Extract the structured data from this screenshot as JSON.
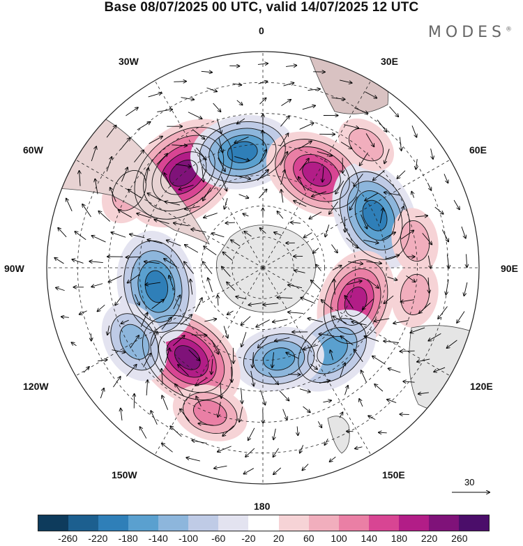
{
  "title": "Base 08/07/2025 00 UTC, valid 14/07/2025 12 UTC",
  "brand": "MODES",
  "brand_mark": "®",
  "longitude_labels": {
    "lon_0": "0",
    "lon_30e": "30E",
    "lon_60e": "60E",
    "lon_90e": "90E",
    "lon_120e": "120E",
    "lon_150e": "150E",
    "lon_180": "180",
    "lon_150w": "150W",
    "lon_120w": "120W",
    "lon_90w": "90W",
    "lon_60w": "60W",
    "lon_30w": "30W"
  },
  "vector_scale_label": "30",
  "colorbar": {
    "ticks": [
      "-260",
      "-220",
      "-180",
      "-140",
      "-100",
      "-60",
      "-20",
      "20",
      "60",
      "100",
      "140",
      "180",
      "220",
      "260"
    ],
    "colors": [
      "#0e3b5c",
      "#1c5f8f",
      "#2f7fb8",
      "#5aa0cf",
      "#8db6dc",
      "#bfcbe6",
      "#e3e3f0",
      "#ffffff",
      "#f6d3d6",
      "#f1aebd",
      "#ea7fa5",
      "#d84593",
      "#b21d87",
      "#7f1279",
      "#4b0e6a"
    ]
  },
  "map": {
    "projection": "south polar stereographic",
    "graticule": "dashed",
    "anomalies": [
      {
        "lon": -40,
        "lat": -50,
        "value": 250
      },
      {
        "lon": -10,
        "lat": -52,
        "value": -180
      },
      {
        "lon": 30,
        "lat": -55,
        "value": 190
      },
      {
        "lon": 65,
        "lat": -50,
        "value": -200
      },
      {
        "lon": 110,
        "lat": -58,
        "value": 180
      },
      {
        "lon": 140,
        "lat": -55,
        "value": -160
      },
      {
        "lon": 170,
        "lat": -60,
        "value": -140
      },
      {
        "lon": -140,
        "lat": -52,
        "value": 220
      },
      {
        "lon": -100,
        "lat": -55,
        "value": -200
      },
      {
        "lon": -120,
        "lat": -42,
        "value": -120
      },
      {
        "lon": -60,
        "lat": -40,
        "value": 80
      },
      {
        "lon": 40,
        "lat": -38,
        "value": 60
      },
      {
        "lon": 80,
        "lat": -40,
        "value": 70
      },
      {
        "lon": -160,
        "lat": -40,
        "value": 100
      },
      {
        "lon": 100,
        "lat": -40,
        "value": 70
      }
    ]
  }
}
